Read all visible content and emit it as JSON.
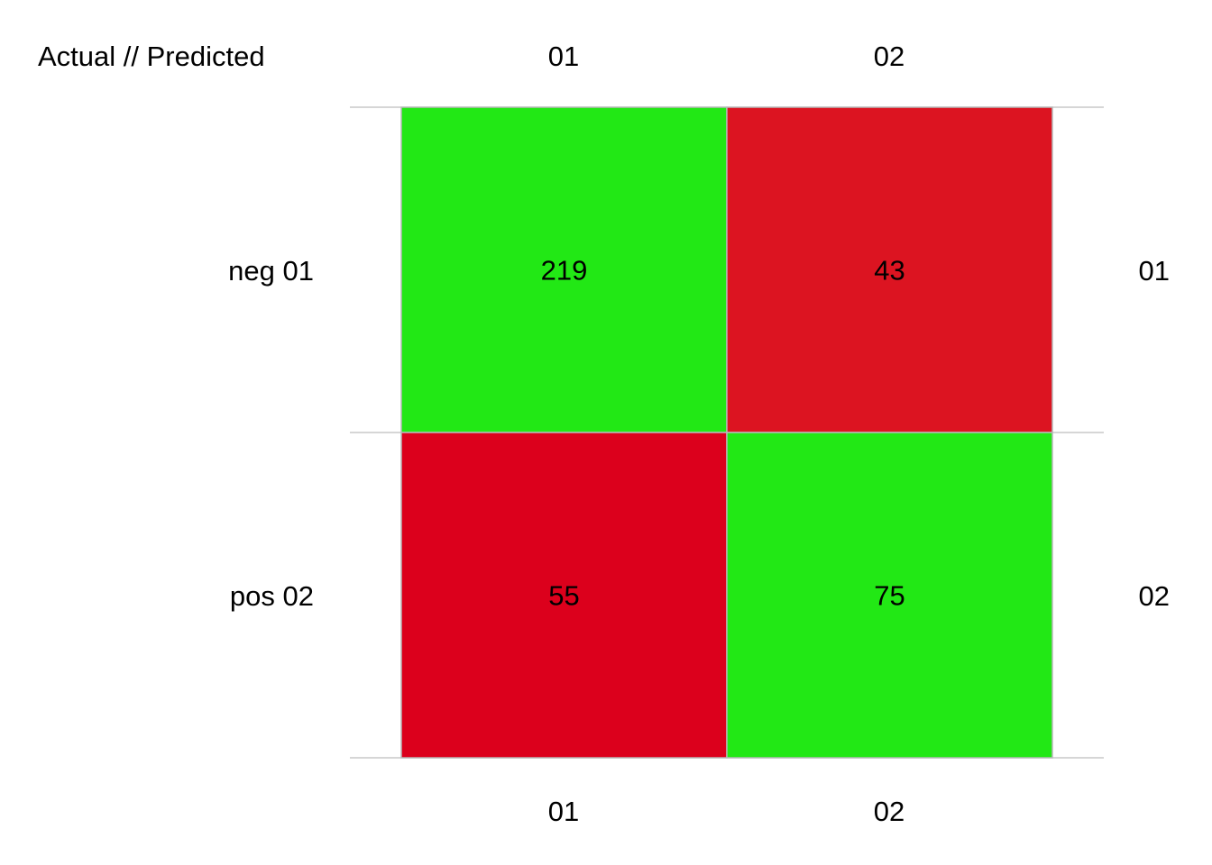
{
  "chart_data": {
    "type": "heatmap",
    "corner_label": "Actual // Predicted",
    "columns": [
      "01",
      "02"
    ],
    "rows": [
      "neg 01",
      "pos 02"
    ],
    "right_labels": [
      "01",
      "02"
    ],
    "bottom_labels": [
      "01",
      "02"
    ],
    "values": [
      [
        219,
        43
      ],
      [
        55,
        75
      ]
    ],
    "cell_colors": [
      [
        "#22e815",
        "#dc1421"
      ],
      [
        "#dc001c",
        "#22e815"
      ]
    ],
    "colors": {
      "correct": "#22e815",
      "incorrect": "#dc1421",
      "gridline": "#bdbdbd",
      "cell_border": "#b8b8b8"
    }
  }
}
